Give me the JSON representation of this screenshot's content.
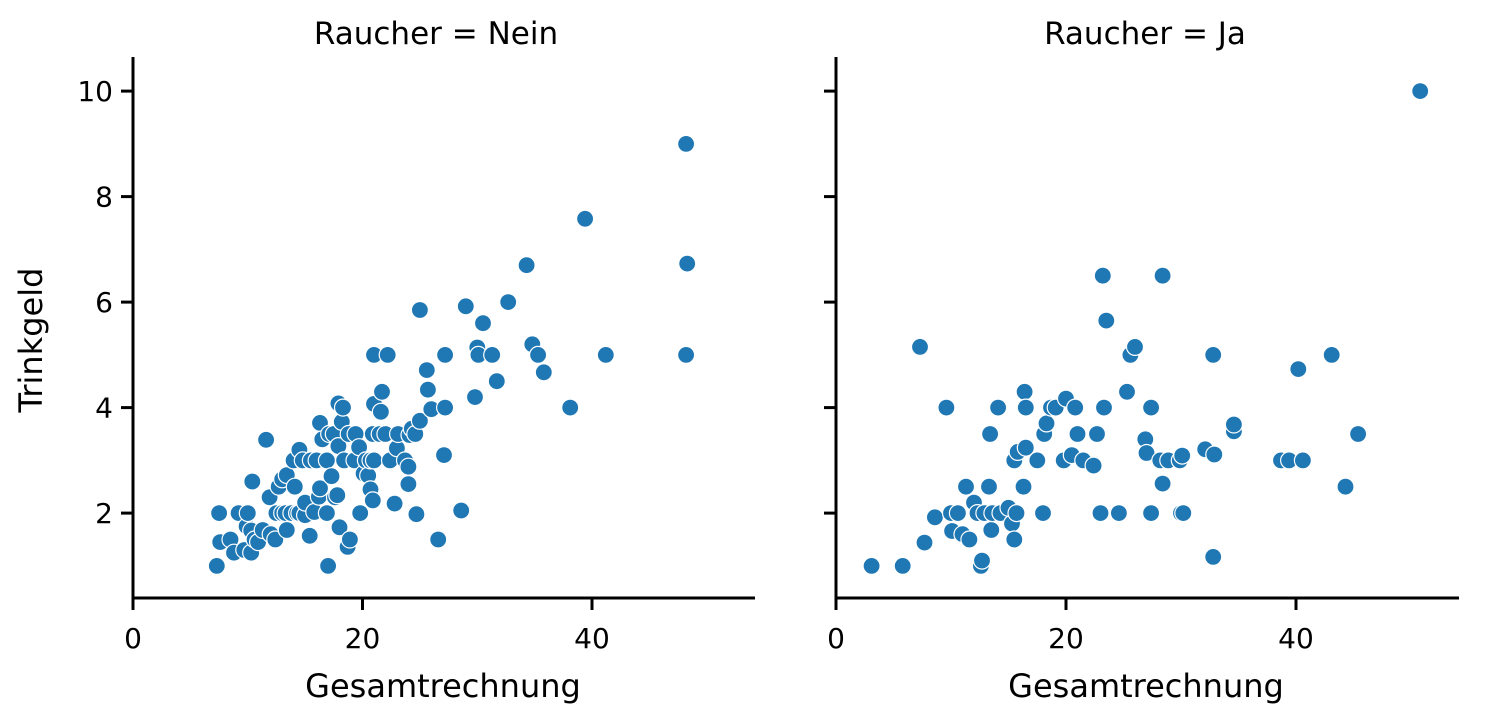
{
  "chart_data": {
    "type": "scatter",
    "title": "",
    "facet_variable": "Raucher",
    "xlabel": "Gesamtrechnung",
    "ylabel": "Trinkgeld",
    "xlim": [
      0,
      54
    ],
    "ylim": [
      0.4,
      10.6
    ],
    "xticks": [
      0,
      20,
      40
    ],
    "yticks": [
      2,
      4,
      6,
      8,
      10
    ],
    "marker_color": "#1f77b4",
    "grid": false,
    "panels": [
      {
        "title": "Raucher = Nein",
        "points": [
          [
            7.3,
            1.0
          ],
          [
            7.5,
            2.0
          ],
          [
            7.6,
            1.45
          ],
          [
            8.5,
            1.5
          ],
          [
            8.8,
            1.25
          ],
          [
            9.2,
            2.0
          ],
          [
            9.7,
            1.3
          ],
          [
            9.9,
            1.75
          ],
          [
            10.0,
            2.0
          ],
          [
            10.3,
            1.25
          ],
          [
            10.3,
            1.67
          ],
          [
            10.4,
            2.6
          ],
          [
            10.6,
            1.5
          ],
          [
            10.9,
            1.45
          ],
          [
            11.3,
            1.68
          ],
          [
            11.6,
            3.39
          ],
          [
            11.9,
            2.3
          ],
          [
            12.0,
            1.6
          ],
          [
            12.4,
            1.5
          ],
          [
            12.5,
            2.0
          ],
          [
            12.7,
            2.5
          ],
          [
            13.0,
            2.0
          ],
          [
            13.0,
            2.64
          ],
          [
            13.3,
            2.0
          ],
          [
            13.4,
            1.68
          ],
          [
            13.4,
            2.72
          ],
          [
            13.8,
            2.0
          ],
          [
            14.0,
            3.0
          ],
          [
            14.1,
            2.5
          ],
          [
            14.3,
            2.0
          ],
          [
            14.5,
            2.0
          ],
          [
            14.5,
            3.2
          ],
          [
            14.8,
            3.0
          ],
          [
            15.0,
            1.96
          ],
          [
            15.0,
            2.2
          ],
          [
            15.4,
            1.57
          ],
          [
            15.5,
            3.0
          ],
          [
            15.8,
            2.02
          ],
          [
            16.0,
            3.0
          ],
          [
            16.2,
            2.31
          ],
          [
            16.3,
            3.71
          ],
          [
            16.3,
            2.47
          ],
          [
            16.5,
            3.4
          ],
          [
            16.9,
            3.0
          ],
          [
            16.9,
            2.0
          ],
          [
            17.0,
            1.0
          ],
          [
            17.1,
            3.5
          ],
          [
            17.3,
            2.7
          ],
          [
            17.5,
            3.5
          ],
          [
            17.6,
            2.3
          ],
          [
            17.8,
            2.34
          ],
          [
            17.9,
            4.08
          ],
          [
            17.9,
            3.27
          ],
          [
            18.0,
            1.73
          ],
          [
            18.2,
            3.73
          ],
          [
            18.3,
            4.0
          ],
          [
            18.4,
            3.0
          ],
          [
            18.7,
            1.36
          ],
          [
            18.8,
            3.5
          ],
          [
            18.9,
            1.5
          ],
          [
            19.3,
            3.0
          ],
          [
            19.4,
            3.5
          ],
          [
            19.7,
            3.25
          ],
          [
            19.8,
            2.0
          ],
          [
            20.1,
            2.75
          ],
          [
            20.3,
            3.0
          ],
          [
            20.5,
            2.71
          ],
          [
            20.7,
            3.0
          ],
          [
            20.7,
            2.45
          ],
          [
            20.9,
            3.5
          ],
          [
            20.9,
            2.24
          ],
          [
            21.0,
            3.0
          ],
          [
            21.0,
            4.07
          ],
          [
            21.0,
            5.0
          ],
          [
            21.5,
            3.5
          ],
          [
            21.6,
            3.92
          ],
          [
            21.7,
            4.3
          ],
          [
            22.0,
            3.5
          ],
          [
            22.2,
            5.0
          ],
          [
            22.4,
            3.0
          ],
          [
            22.8,
            2.18
          ],
          [
            23.0,
            3.23
          ],
          [
            23.1,
            3.5
          ],
          [
            23.7,
            3.0
          ],
          [
            24.0,
            2.88
          ],
          [
            24.0,
            2.55
          ],
          [
            24.1,
            3.48
          ],
          [
            24.3,
            3.6
          ],
          [
            24.6,
            3.5
          ],
          [
            24.7,
            1.98
          ],
          [
            25.0,
            3.75
          ],
          [
            25.0,
            5.85
          ],
          [
            25.6,
            4.71
          ],
          [
            25.7,
            4.34
          ],
          [
            26.0,
            3.97
          ],
          [
            26.6,
            1.5
          ],
          [
            27.1,
            3.1
          ],
          [
            27.2,
            4.0
          ],
          [
            27.2,
            5.0
          ],
          [
            28.6,
            2.05
          ],
          [
            29.0,
            5.92
          ],
          [
            29.8,
            4.2
          ],
          [
            30.0,
            5.14
          ],
          [
            30.1,
            5.0
          ],
          [
            30.5,
            5.6
          ],
          [
            31.3,
            5.0
          ],
          [
            31.7,
            4.5
          ],
          [
            32.7,
            6.0
          ],
          [
            34.3,
            6.7
          ],
          [
            34.8,
            5.2
          ],
          [
            35.3,
            5.0
          ],
          [
            35.8,
            4.67
          ],
          [
            38.1,
            4.0
          ],
          [
            39.4,
            7.58
          ],
          [
            41.2,
            5.0
          ],
          [
            48.2,
            9.0
          ],
          [
            48.3,
            6.73
          ],
          [
            48.2,
            5.0
          ]
        ]
      },
      {
        "title": "Raucher = Ja",
        "points": [
          [
            3.1,
            1.0
          ],
          [
            5.8,
            1.0
          ],
          [
            7.3,
            5.15
          ],
          [
            7.7,
            1.44
          ],
          [
            8.6,
            1.92
          ],
          [
            9.6,
            4.0
          ],
          [
            10.0,
            2.0
          ],
          [
            10.1,
            1.66
          ],
          [
            10.6,
            2.0
          ],
          [
            11.0,
            1.6
          ],
          [
            11.3,
            2.5
          ],
          [
            11.6,
            1.5
          ],
          [
            12.0,
            2.2
          ],
          [
            12.3,
            2.0
          ],
          [
            12.6,
            1.0
          ],
          [
            12.7,
            1.1
          ],
          [
            12.9,
            2.0
          ],
          [
            13.3,
            2.5
          ],
          [
            13.4,
            3.5
          ],
          [
            13.5,
            1.68
          ],
          [
            13.6,
            2.0
          ],
          [
            14.1,
            4.0
          ],
          [
            14.3,
            2.0
          ],
          [
            15.0,
            2.1
          ],
          [
            15.3,
            1.8
          ],
          [
            15.5,
            1.5
          ],
          [
            15.5,
            3.0
          ],
          [
            15.7,
            2.0
          ],
          [
            15.8,
            3.16
          ],
          [
            16.3,
            2.5
          ],
          [
            16.4,
            4.3
          ],
          [
            16.5,
            3.24
          ],
          [
            16.5,
            4.0
          ],
          [
            17.5,
            3.0
          ],
          [
            18.0,
            2.0
          ],
          [
            18.1,
            3.5
          ],
          [
            18.3,
            3.7
          ],
          [
            18.7,
            4.0
          ],
          [
            19.1,
            4.0
          ],
          [
            19.8,
            3.0
          ],
          [
            20.0,
            4.17
          ],
          [
            20.5,
            3.1
          ],
          [
            20.8,
            4.0
          ],
          [
            21.0,
            3.5
          ],
          [
            21.5,
            3.0
          ],
          [
            22.4,
            2.9
          ],
          [
            22.7,
            3.5
          ],
          [
            23.0,
            2.0
          ],
          [
            23.2,
            6.5
          ],
          [
            23.3,
            4.0
          ],
          [
            23.5,
            5.65
          ],
          [
            24.6,
            2.0
          ],
          [
            25.3,
            4.3
          ],
          [
            25.6,
            5.0
          ],
          [
            26.0,
            5.15
          ],
          [
            26.9,
            3.4
          ],
          [
            27.0,
            3.14
          ],
          [
            27.4,
            4.0
          ],
          [
            27.4,
            2.0
          ],
          [
            28.2,
            3.0
          ],
          [
            28.4,
            6.5
          ],
          [
            28.4,
            2.56
          ],
          [
            28.9,
            3.0
          ],
          [
            29.9,
            3.0
          ],
          [
            30.0,
            2.0
          ],
          [
            30.2,
            2.0
          ],
          [
            30.1,
            3.09
          ],
          [
            32.1,
            3.21
          ],
          [
            32.8,
            5.0
          ],
          [
            32.9,
            3.11
          ],
          [
            32.8,
            1.17
          ],
          [
            34.6,
            3.55
          ],
          [
            34.6,
            3.68
          ],
          [
            38.7,
            3.0
          ],
          [
            39.4,
            3.0
          ],
          [
            40.2,
            4.73
          ],
          [
            40.6,
            3.0
          ],
          [
            43.1,
            5.0
          ],
          [
            44.3,
            2.5
          ],
          [
            45.4,
            3.5
          ],
          [
            50.8,
            10.0
          ]
        ]
      }
    ]
  }
}
